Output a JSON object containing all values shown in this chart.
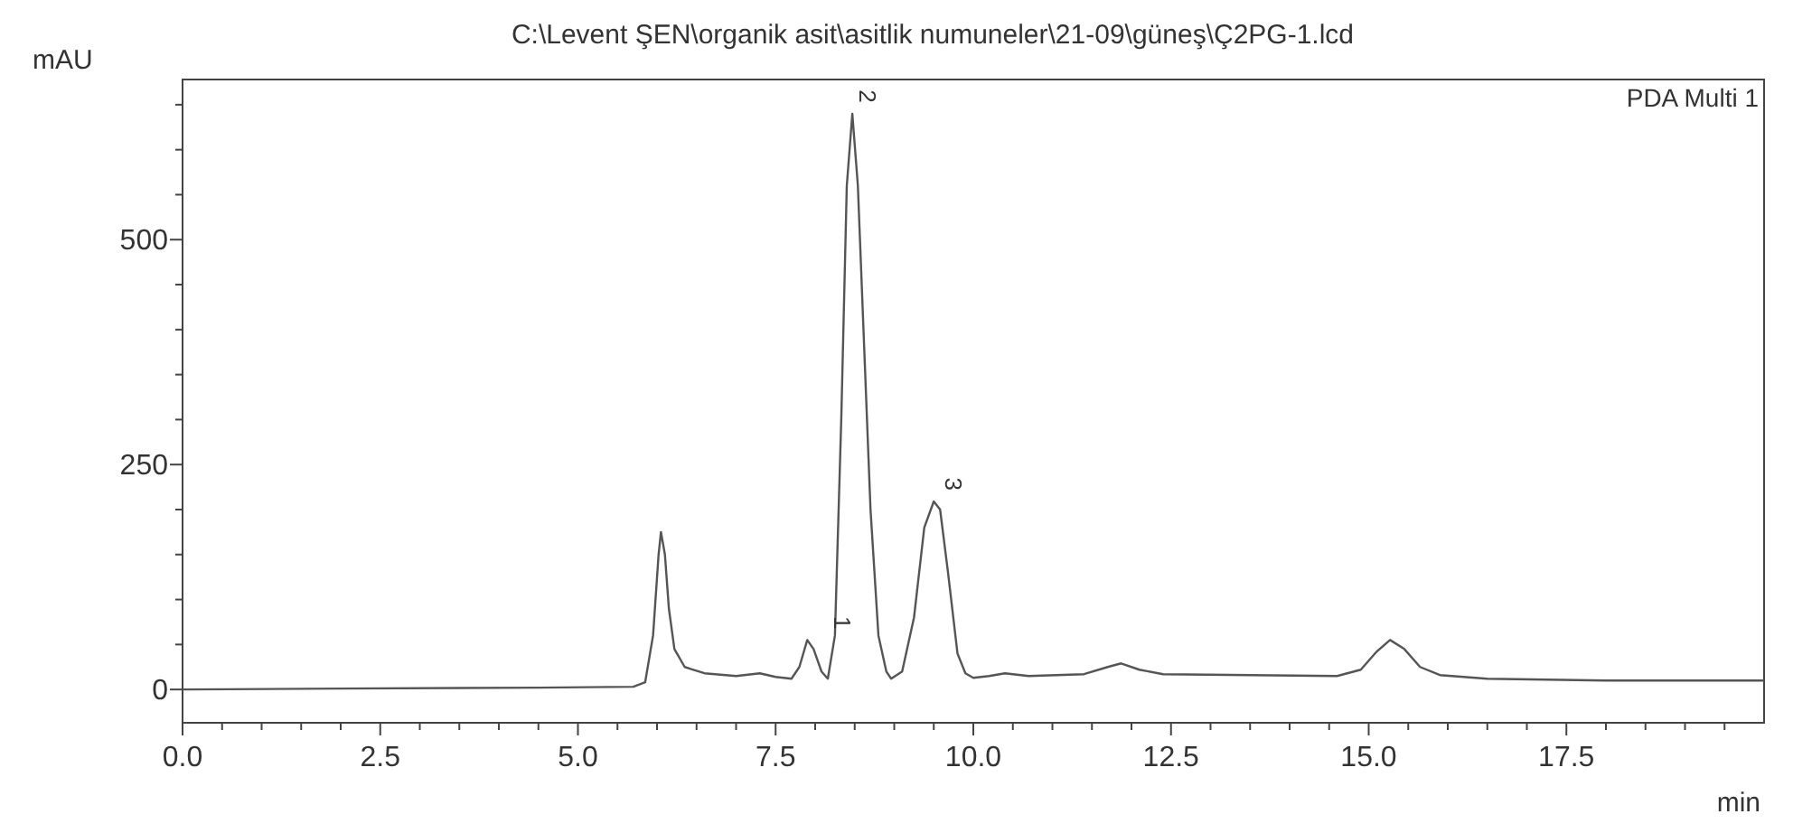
{
  "chart_data": {
    "type": "line",
    "title": "C:\\Levent ŞEN\\organik asit\\asitlik numuneler\\21-09\\güneş\\Ç2PG-1.lcd",
    "xlabel": "min",
    "ylabel": "mAU",
    "x": [
      0,
      2,
      4.5,
      5.7,
      5.85,
      5.95,
      6.02,
      6.05,
      6.1,
      6.15,
      6.22,
      6.35,
      6.6,
      7.0,
      7.3,
      7.5,
      7.7,
      7.8,
      7.9,
      7.98,
      8.08,
      8.16,
      8.25,
      8.33,
      8.4,
      8.47,
      8.54,
      8.62,
      8.7,
      8.8,
      8.9,
      8.96,
      9.1,
      9.25,
      9.38,
      9.5,
      9.58,
      9.68,
      9.8,
      9.9,
      10.0,
      10.2,
      10.4,
      10.7,
      11.4,
      11.7,
      11.87,
      12.1,
      12.4,
      13.5,
      14.6,
      14.9,
      15.1,
      15.27,
      15.45,
      15.65,
      15.9,
      16.5,
      18,
      20
    ],
    "series": [
      {
        "color": "#555555",
        "values": [
          0,
          1,
          2,
          3,
          8,
          60,
          150,
          175,
          150,
          90,
          45,
          25,
          18,
          15,
          18,
          14,
          12,
          25,
          55,
          45,
          20,
          12,
          60,
          300,
          560,
          640,
          560,
          380,
          200,
          60,
          20,
          12,
          20,
          80,
          180,
          209,
          200,
          130,
          40,
          18,
          13,
          15,
          18,
          15,
          17,
          25,
          29,
          22,
          17,
          16,
          15,
          22,
          42,
          55,
          45,
          25,
          16,
          12,
          10,
          10
        ]
      }
    ],
    "xlim": [
      0,
      20
    ],
    "ylim": [
      -37,
      678
    ],
    "xticks": [
      {
        "value": 0,
        "label": "0.0"
      },
      {
        "value": 0.5,
        "label": null
      },
      {
        "value": 1,
        "label": null
      },
      {
        "value": 1.5,
        "label": null
      },
      {
        "value": 2,
        "label": null
      },
      {
        "value": 2.5,
        "label": "2.5"
      },
      {
        "value": 3,
        "label": null
      },
      {
        "value": 3.5,
        "label": null
      },
      {
        "value": 4,
        "label": null
      },
      {
        "value": 4.5,
        "label": null
      },
      {
        "value": 5,
        "label": "5.0"
      },
      {
        "value": 5.5,
        "label": null
      },
      {
        "value": 6,
        "label": null
      },
      {
        "value": 6.5,
        "label": null
      },
      {
        "value": 7,
        "label": null
      },
      {
        "value": 7.5,
        "label": "7.5"
      },
      {
        "value": 8,
        "label": null
      },
      {
        "value": 8.5,
        "label": null
      },
      {
        "value": 9,
        "label": null
      },
      {
        "value": 9.5,
        "label": null
      },
      {
        "value": 10,
        "label": "10.0"
      },
      {
        "value": 10.5,
        "label": null
      },
      {
        "value": 11,
        "label": null
      },
      {
        "value": 11.5,
        "label": null
      },
      {
        "value": 12,
        "label": null
      },
      {
        "value": 12.5,
        "label": "12.5"
      },
      {
        "value": 13,
        "label": null
      },
      {
        "value": 13.5,
        "label": null
      },
      {
        "value": 14,
        "label": null
      },
      {
        "value": 14.5,
        "label": null
      },
      {
        "value": 15,
        "label": "15.0"
      },
      {
        "value": 15.5,
        "label": null
      },
      {
        "value": 16,
        "label": null
      },
      {
        "value": 16.5,
        "label": null
      },
      {
        "value": 17,
        "label": null
      },
      {
        "value": 17.5,
        "label": "17.5"
      },
      {
        "value": 18,
        "label": null
      },
      {
        "value": 18.5,
        "label": null
      },
      {
        "value": 19,
        "label": null
      },
      {
        "value": 19.5,
        "label": null
      }
    ],
    "yticks": [
      0,
      {
        "value": 50,
        "label": null
      },
      {
        "value": 100,
        "label": null
      },
      {
        "value": 150,
        "label": null
      },
      {
        "value": 200,
        "label": null
      },
      250,
      {
        "value": 300,
        "label": null
      },
      {
        "value": 350,
        "label": null
      },
      {
        "value": 400,
        "label": null
      },
      {
        "value": 450,
        "label": null
      },
      500,
      {
        "value": 550,
        "label": null
      },
      {
        "value": 600,
        "label": null
      },
      {
        "value": 650,
        "label": null
      }
    ],
    "annotations": [
      {
        "text": "1",
        "x": 8.15,
        "y": 55
      },
      {
        "text": "2",
        "x": 8.47,
        "y": 640
      },
      {
        "text": "3",
        "x": 9.55,
        "y": 209
      },
      "PDA Multi 1"
    ],
    "grid": false,
    "line_style": "solid"
  }
}
